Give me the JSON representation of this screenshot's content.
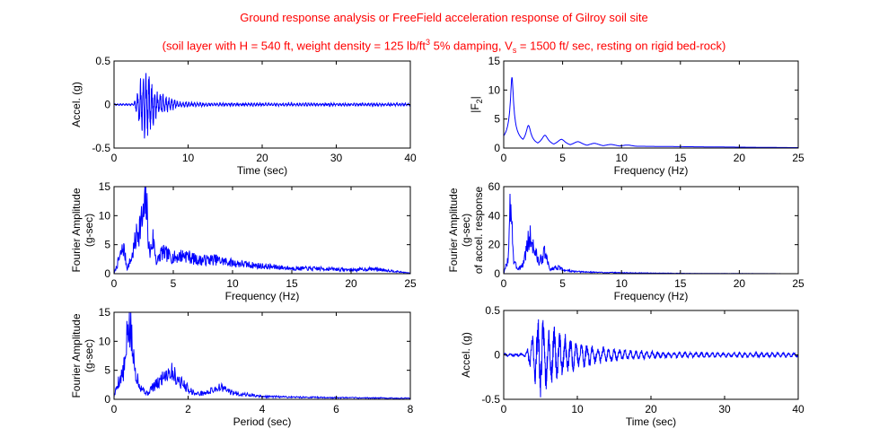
{
  "figure": {
    "title_line1": "Ground response analysis or FreeField acceleration response of Gilroy soil site",
    "title_line2": {
      "part1": "(soil layer with H = 540 ft, weight density = 125 lb/ft",
      "sup": "3",
      "part2": " 5% damping, V",
      "sub": "s",
      "part3": " = 1500 ft/ sec, resting on rigid bed-rock)"
    },
    "colors": {
      "title": "#ff0000",
      "series": "#0000ff",
      "axis": "#000000"
    }
  },
  "chart_data": [
    {
      "id": "input-accel",
      "type": "line",
      "xlabel": "Time (sec)",
      "ylabel": [
        "Accel. (g)"
      ],
      "xlim": [
        0,
        40
      ],
      "ylim": [
        -0.5,
        0.5
      ],
      "xticks": [
        0,
        10,
        20,
        30,
        40
      ],
      "yticks": [
        -0.5,
        0,
        0.5
      ],
      "xtick_labels": [
        "0",
        "10",
        "20",
        "30",
        "40"
      ],
      "ytick_labels": [
        "-0.5",
        "0",
        "0.5"
      ],
      "signal": {
        "kind": "accel",
        "duration": 40,
        "onset": 2.5,
        "peak_time": 4.0,
        "peak": 0.45,
        "decay": 1.7,
        "tail": 0.015,
        "n": 1400,
        "seed": 11,
        "freq": 2.6
      }
    },
    {
      "id": "transfer-function",
      "type": "line",
      "xlabel": "Frequency (Hz)",
      "ylabel": [
        "|F",
        "2",
        "|"
      ],
      "xlim": [
        0,
        25
      ],
      "ylim": [
        0,
        15
      ],
      "xticks": [
        0,
        5,
        10,
        15,
        20,
        25
      ],
      "yticks": [
        0,
        5,
        10,
        15
      ],
      "xtick_labels": [
        "0",
        "5",
        "10",
        "15",
        "20",
        "25"
      ],
      "ytick_labels": [
        "0",
        "5",
        "10",
        "15"
      ],
      "signal": {
        "kind": "transfer",
        "fmax": 25,
        "f1": 0.7,
        "peaks": [
          12.5,
          4.2,
          2.5,
          1.8,
          1.4,
          1.1,
          0.9,
          0.8
        ],
        "n": 900
      }
    },
    {
      "id": "input-fourier",
      "type": "line",
      "xlabel": "Frequency (Hz)",
      "ylabel": [
        "Fourier Amplitude",
        "(g-sec)"
      ],
      "xlim": [
        0,
        25
      ],
      "ylim": [
        0,
        15
      ],
      "xticks": [
        0,
        5,
        10,
        15,
        20,
        25
      ],
      "yticks": [
        0,
        5,
        10,
        15
      ],
      "xtick_labels": [
        "0",
        "5",
        "10",
        "15",
        "20",
        "25"
      ],
      "ytick_labels": [
        "0",
        "5",
        "10",
        "15"
      ],
      "signal": {
        "kind": "fourier",
        "fmax": 25,
        "seed": 7,
        "n": 700,
        "points": [
          [
            0,
            0
          ],
          [
            0.4,
            2.5
          ],
          [
            0.8,
            5.0
          ],
          [
            1.1,
            1.0
          ],
          [
            1.5,
            3.0
          ],
          [
            2.0,
            8.0
          ],
          [
            2.5,
            10.5
          ],
          [
            2.7,
            14.0
          ],
          [
            3.0,
            3.5
          ],
          [
            3.3,
            6.5
          ],
          [
            3.6,
            2.0
          ],
          [
            4.0,
            4.0
          ],
          [
            5.0,
            3.0
          ],
          [
            6.0,
            3.5
          ],
          [
            7.0,
            2.5
          ],
          [
            8.5,
            2.6
          ],
          [
            10,
            2.0
          ],
          [
            12,
            1.5
          ],
          [
            15,
            1.0
          ],
          [
            18,
            0.9
          ],
          [
            20,
            0.7
          ],
          [
            22,
            0.9
          ],
          [
            25,
            0.1
          ]
        ]
      }
    },
    {
      "id": "response-fourier",
      "type": "line",
      "xlabel": "Frequency (Hz)",
      "ylabel": [
        "Fourier Amplitude",
        "(g-sec)",
        "of accel. response"
      ],
      "xlim": [
        0,
        25
      ],
      "ylim": [
        0,
        60
      ],
      "xticks": [
        0,
        5,
        10,
        15,
        20,
        25
      ],
      "yticks": [
        0,
        20,
        40,
        60
      ],
      "xtick_labels": [
        "0",
        "5",
        "10",
        "15",
        "20",
        "25"
      ],
      "ytick_labels": [
        "0",
        "20",
        "40",
        "60"
      ],
      "signal": {
        "kind": "fourier",
        "fmax": 25,
        "seed": 3,
        "n": 700,
        "points": [
          [
            0,
            0
          ],
          [
            0.4,
            12
          ],
          [
            0.6,
            60
          ],
          [
            0.85,
            8
          ],
          [
            1.2,
            4
          ],
          [
            1.6,
            6
          ],
          [
            2.2,
            28
          ],
          [
            2.6,
            18
          ],
          [
            3.0,
            8
          ],
          [
            3.5,
            16
          ],
          [
            3.9,
            3
          ],
          [
            4.5,
            5
          ],
          [
            5.0,
            3
          ],
          [
            6,
            1.5
          ],
          [
            8,
            1.0
          ],
          [
            10,
            0.7
          ],
          [
            13,
            0.4
          ],
          [
            16,
            0.2
          ],
          [
            20,
            0.1
          ],
          [
            25,
            0
          ]
        ]
      }
    },
    {
      "id": "fourier-vs-period",
      "type": "line",
      "xlabel": "Period (sec)",
      "ylabel": [
        "Fourier Amplitude",
        "(g-sec)"
      ],
      "xlim": [
        0,
        8
      ],
      "ylim": [
        0,
        15
      ],
      "xticks": [
        0,
        2,
        4,
        6,
        8
      ],
      "yticks": [
        0,
        5,
        10,
        15
      ],
      "xtick_labels": [
        "0",
        "2",
        "4",
        "6",
        "8"
      ],
      "ytick_labels": [
        "0",
        "5",
        "10",
        "15"
      ],
      "signal": {
        "kind": "fourier",
        "fmax": 8,
        "seed": 5,
        "n": 600,
        "points": [
          [
            0,
            0.5
          ],
          [
            0.1,
            3.0
          ],
          [
            0.25,
            5.0
          ],
          [
            0.33,
            8.0
          ],
          [
            0.37,
            14.0
          ],
          [
            0.45,
            12.5
          ],
          [
            0.55,
            6.0
          ],
          [
            0.7,
            2.5
          ],
          [
            0.9,
            1.0
          ],
          [
            1.0,
            2.0
          ],
          [
            1.2,
            3.0
          ],
          [
            1.4,
            5.0
          ],
          [
            1.55,
            5.2
          ],
          [
            1.75,
            3.5
          ],
          [
            2.0,
            2.0
          ],
          [
            2.2,
            1.0
          ],
          [
            2.5,
            1.2
          ],
          [
            2.85,
            2.3
          ],
          [
            3.2,
            1.2
          ],
          [
            4.0,
            0.5
          ],
          [
            6.0,
            0.3
          ],
          [
            8.0,
            0.2
          ]
        ]
      }
    },
    {
      "id": "response-accel",
      "type": "line",
      "xlabel": "Time (sec)",
      "ylabel": [
        "Accel. (g)"
      ],
      "xlim": [
        0,
        40
      ],
      "ylim": [
        -0.5,
        0.5
      ],
      "xticks": [
        0,
        10,
        20,
        30,
        40
      ],
      "yticks": [
        -0.5,
        0,
        0.5
      ],
      "xtick_labels": [
        "0",
        "10",
        "20",
        "30",
        "40"
      ],
      "ytick_labels": [
        "-0.5",
        "0",
        "0.5"
      ],
      "signal": {
        "kind": "accel",
        "duration": 40,
        "onset": 2.5,
        "peak_time": 4.8,
        "peak": 0.42,
        "decay": 4.5,
        "tail": 0.025,
        "n": 1400,
        "seed": 23,
        "freq": 1.35
      }
    }
  ]
}
